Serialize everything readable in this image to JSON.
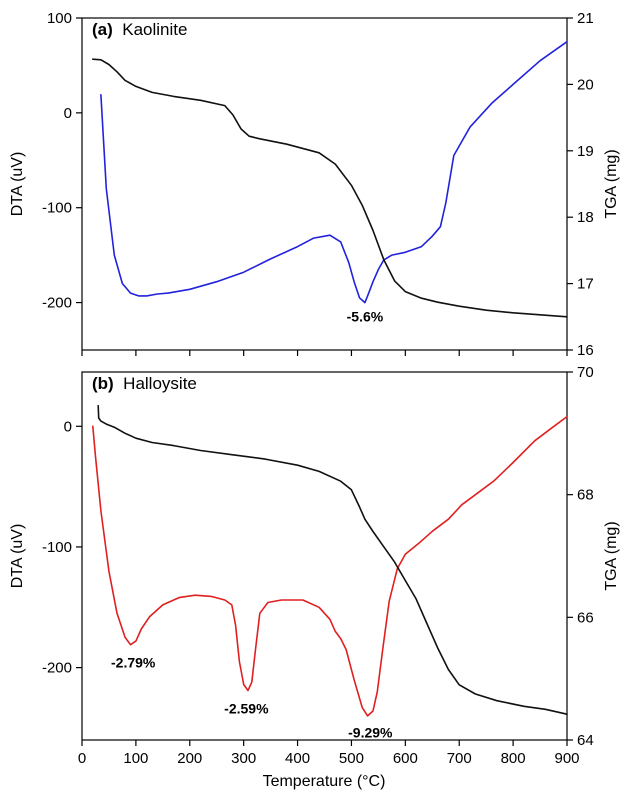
{
  "chart_data": [
    {
      "type": "line",
      "panel_letter": "(a)",
      "panel_name": "Kaolinite",
      "xlim": [
        0,
        900
      ],
      "ylabel": "DTA (uV)",
      "ylim": [
        -250,
        100
      ],
      "yticks": [
        -200,
        -100,
        0,
        100
      ],
      "y2label": "TGA (mg)",
      "y2lim": [
        16,
        21
      ],
      "y2ticks": [
        16,
        17,
        18,
        19,
        20,
        21
      ],
      "series": [
        {
          "axis": "left",
          "color": "#2222dd",
          "x": [
            35,
            45,
            60,
            75,
            90,
            105,
            120,
            140,
            160,
            200,
            250,
            300,
            350,
            400,
            430,
            460,
            480,
            495,
            505,
            515,
            525,
            530,
            540,
            550,
            560,
            575,
            600,
            630,
            650,
            665,
            675,
            690,
            720,
            760,
            800,
            850,
            900
          ],
          "y": [
            19,
            -80,
            -150,
            -180,
            -190,
            -193,
            -193,
            -191,
            -190,
            -186,
            -178,
            -168,
            -154,
            -141,
            -132,
            -129,
            -136,
            -158,
            -178,
            -195,
            -200,
            -193,
            -178,
            -165,
            -155,
            -150,
            -147,
            -141,
            -130,
            -120,
            -95,
            -45,
            -15,
            10,
            30,
            55,
            75
          ]
        },
        {
          "axis": "right",
          "color": "#111111",
          "x": [
            20,
            35,
            50,
            65,
            80,
            100,
            130,
            170,
            220,
            265,
            280,
            295,
            310,
            330,
            380,
            440,
            470,
            500,
            520,
            540,
            560,
            580,
            600,
            630,
            660,
            700,
            750,
            800,
            850,
            900
          ],
          "y": [
            20.38,
            20.37,
            20.3,
            20.19,
            20.06,
            19.97,
            19.88,
            19.82,
            19.76,
            19.68,
            19.54,
            19.33,
            19.22,
            19.18,
            19.1,
            18.97,
            18.8,
            18.48,
            18.18,
            17.8,
            17.36,
            17.04,
            16.88,
            16.78,
            16.72,
            16.66,
            16.6,
            16.56,
            16.53,
            16.5
          ]
        }
      ],
      "annotations": [
        {
          "text": "-5.6%",
          "x": 525,
          "y": -220
        }
      ]
    },
    {
      "type": "line",
      "panel_letter": "(b)",
      "panel_name": "Halloysite",
      "xlabel": "Temperature (°C)",
      "xlim": [
        0,
        900
      ],
      "xticks": [
        0,
        100,
        200,
        300,
        400,
        500,
        600,
        700,
        800,
        900
      ],
      "ylabel": "DTA (uV)",
      "ylim": [
        -260,
        45
      ],
      "yticks": [
        -200,
        -100,
        0
      ],
      "y2label": "TGA (mg)",
      "y2lim": [
        64,
        70
      ],
      "y2ticks": [
        64,
        66,
        68,
        70
      ],
      "series": [
        {
          "axis": "left",
          "color": "#e02020",
          "x": [
            20,
            25,
            35,
            50,
            65,
            80,
            90,
            100,
            110,
            125,
            150,
            180,
            210,
            240,
            265,
            278,
            285,
            292,
            300,
            308,
            315,
            322,
            330,
            345,
            370,
            410,
            440,
            460,
            470,
            480,
            490,
            505,
            520,
            530,
            540,
            548,
            558,
            570,
            585,
            600,
            625,
            650,
            680,
            705,
            735,
            765,
            800,
            840,
            870,
            900
          ],
          "y": [
            0,
            -25,
            -70,
            -120,
            -155,
            -175,
            -181,
            -178,
            -168,
            -158,
            -148,
            -142,
            -140,
            -141,
            -144,
            -148,
            -165,
            -195,
            -214,
            -219,
            -212,
            -185,
            -155,
            -146,
            -144,
            -144,
            -150,
            -160,
            -170,
            -176,
            -185,
            -210,
            -233,
            -240,
            -236,
            -220,
            -185,
            -145,
            -118,
            -106,
            -97,
            -87,
            -77,
            -65,
            -55,
            -45,
            -30,
            -12,
            -2,
            8
          ]
        },
        {
          "axis": "right",
          "color": "#111111",
          "x": [
            30,
            31,
            35,
            45,
            60,
            80,
            100,
            130,
            170,
            220,
            280,
            340,
            400,
            440,
            480,
            500,
            515,
            525,
            540,
            560,
            580,
            600,
            620,
            640,
            660,
            680,
            700,
            730,
            770,
            820,
            860,
            900
          ],
          "y": [
            69.45,
            69.25,
            69.2,
            69.15,
            69.1,
            69.0,
            68.92,
            68.85,
            68.8,
            68.72,
            68.65,
            68.58,
            68.48,
            68.38,
            68.22,
            68.08,
            67.8,
            67.6,
            67.4,
            67.15,
            66.9,
            66.6,
            66.3,
            65.9,
            65.5,
            65.15,
            64.9,
            64.75,
            64.64,
            64.55,
            64.5,
            64.42
          ]
        }
      ],
      "annotations": [
        {
          "text": "-2.79%",
          "x": 95,
          "y": -200
        },
        {
          "text": "-2.59%",
          "x": 305,
          "y": -238
        },
        {
          "text": "-9.29%",
          "x": 535,
          "y": -258
        }
      ]
    }
  ]
}
